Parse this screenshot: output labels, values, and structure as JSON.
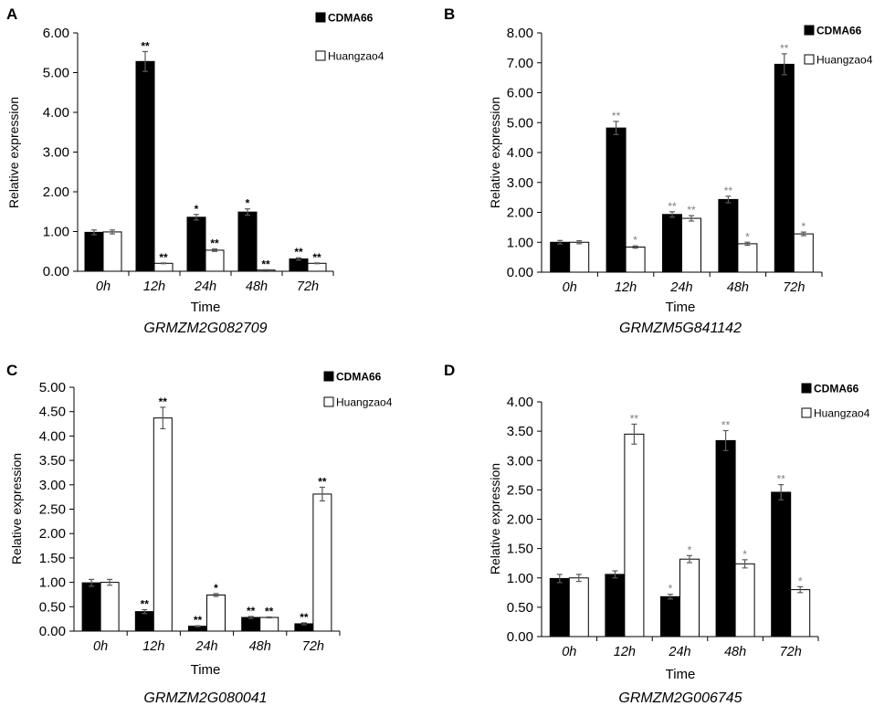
{
  "colors": {
    "outline": "#000000",
    "error_bar": "#595959"
  },
  "chart_data": [
    {
      "panel": "A",
      "type": "bar",
      "title": "GRMZM2G082709",
      "xlabel": "Time",
      "ylabel": "Relative expression",
      "categories": [
        "0h",
        "12h",
        "24h",
        "48h",
        "72h"
      ],
      "ylim": [
        0,
        6
      ],
      "yticks": [
        "0.00",
        "1.00",
        "2.00",
        "3.00",
        "4.00",
        "5.00",
        "6.00"
      ],
      "mark_color": "#000000",
      "series": [
        {
          "name": "CDMA66",
          "color": "#000000",
          "values": [
            0.98,
            5.28,
            1.36,
            1.49,
            0.31
          ],
          "errors": [
            0.06,
            0.25,
            0.07,
            0.08,
            0.03
          ],
          "marks": [
            null,
            "**",
            "*",
            "*",
            "**"
          ]
        },
        {
          "name": "Huangzao4",
          "color": "#ffffff",
          "values": [
            0.99,
            0.2,
            0.53,
            0.03,
            0.2
          ],
          "errors": [
            0.05,
            0.01,
            0.03,
            0.01,
            0.01
          ],
          "marks": [
            null,
            "**",
            "**",
            "**",
            "**"
          ]
        }
      ]
    },
    {
      "panel": "B",
      "type": "bar",
      "title": "GRMZM5G841142",
      "xlabel": "Time",
      "ylabel": "Relative expression",
      "categories": [
        "0h",
        "12h",
        "24h",
        "48h",
        "72h"
      ],
      "ylim": [
        0,
        8
      ],
      "yticks": [
        "0.00",
        "1.00",
        "2.00",
        "3.00",
        "4.00",
        "5.00",
        "6.00",
        "7.00",
        "8.00"
      ],
      "mark_color": "#7f7f7f",
      "series": [
        {
          "name": "CDMA66",
          "color": "#000000",
          "values": [
            1.0,
            4.82,
            1.93,
            2.43,
            6.95
          ],
          "errors": [
            0.06,
            0.22,
            0.09,
            0.11,
            0.35
          ],
          "marks": [
            null,
            "**",
            "**",
            "**",
            "**"
          ]
        },
        {
          "name": "Huangzao4",
          "color": "#ffffff",
          "values": [
            1.0,
            0.84,
            1.8,
            0.95,
            1.28
          ],
          "errors": [
            0.05,
            0.04,
            0.09,
            0.05,
            0.06
          ],
          "marks": [
            null,
            "*",
            "**",
            "*",
            "*"
          ]
        }
      ]
    },
    {
      "panel": "C",
      "type": "bar",
      "title": "GRMZM2G080041",
      "xlabel": "Time",
      "ylabel": "Relative expression",
      "categories": [
        "0h",
        "12h",
        "24h",
        "48h",
        "72h"
      ],
      "ylim": [
        0,
        5
      ],
      "yticks": [
        "0.00",
        "0.50",
        "1.00",
        "1.50",
        "2.00",
        "2.50",
        "3.00",
        "3.50",
        "4.00",
        "4.50",
        "5.00"
      ],
      "mark_color": "#000000",
      "series": [
        {
          "name": "CDMA66",
          "color": "#000000",
          "values": [
            0.99,
            0.4,
            0.1,
            0.28,
            0.15
          ],
          "errors": [
            0.07,
            0.04,
            0.01,
            0.02,
            0.02
          ],
          "marks": [
            null,
            "**",
            "**",
            "**",
            "**"
          ]
        },
        {
          "name": "Huangzao4",
          "color": "#ffffff",
          "values": [
            1.0,
            4.37,
            0.74,
            0.28,
            2.81
          ],
          "errors": [
            0.06,
            0.22,
            0.03,
            0.01,
            0.14
          ],
          "marks": [
            null,
            "**",
            "*",
            "**",
            "**"
          ]
        }
      ]
    },
    {
      "panel": "D",
      "type": "bar",
      "title": "GRMZM2G006745",
      "xlabel": "Time",
      "ylabel": "Relative expression",
      "categories": [
        "0h",
        "12h",
        "24h",
        "48h",
        "72h"
      ],
      "ylim": [
        0,
        4
      ],
      "yticks": [
        "0.00",
        "0.50",
        "1.00",
        "1.50",
        "2.00",
        "2.50",
        "3.00",
        "3.50",
        "4.00"
      ],
      "mark_color": "#7f7f7f",
      "series": [
        {
          "name": "CDMA66",
          "color": "#000000",
          "values": [
            0.99,
            1.06,
            0.68,
            3.34,
            2.46
          ],
          "errors": [
            0.07,
            0.06,
            0.04,
            0.17,
            0.13
          ],
          "marks": [
            null,
            null,
            "*",
            "**",
            "**"
          ]
        },
        {
          "name": "Huangzao4",
          "color": "#ffffff",
          "values": [
            1.0,
            3.45,
            1.32,
            1.24,
            0.8
          ],
          "errors": [
            0.06,
            0.17,
            0.06,
            0.07,
            0.05
          ],
          "marks": [
            null,
            "**",
            "*",
            "*",
            "*"
          ]
        }
      ]
    }
  ]
}
